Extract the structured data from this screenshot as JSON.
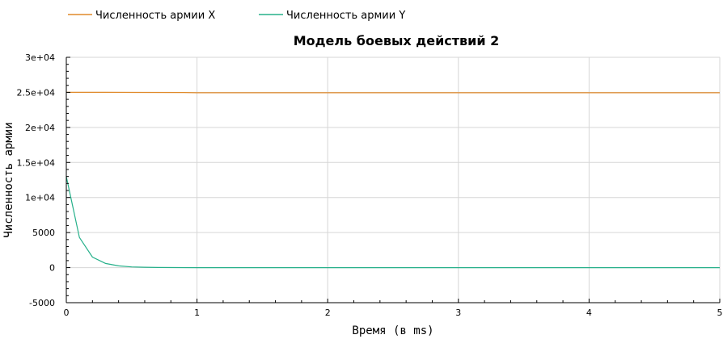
{
  "chart_data": {
    "type": "line",
    "title": "Модель боевых действий 2",
    "xlabel": "Время (в ms)",
    "ylabel": "Численность армии",
    "xlim": [
      0,
      5
    ],
    "ylim": [
      -5000,
      30000
    ],
    "xticks": [
      0,
      1,
      2,
      3,
      4,
      5
    ],
    "yticks": [
      -5000,
      0,
      5000,
      10000,
      15000,
      20000,
      25000,
      30000
    ],
    "ytick_labels": [
      "-5000",
      "0",
      "5000",
      "1e+04",
      "1.5e+04",
      "2e+04",
      "2.5e+04",
      "3e+04"
    ],
    "grid": true,
    "legend_position": "top-left",
    "series": [
      {
        "name": "Численность армии X",
        "color": "#e08a2a",
        "x": [
          0,
          0.1,
          0.2,
          0.3,
          0.5,
          0.9,
          1,
          2,
          3,
          4,
          5
        ],
        "y": [
          25000,
          25000,
          25000,
          25000,
          24990,
          24980,
          24950,
          24950,
          24950,
          24950,
          24950
        ]
      },
      {
        "name": "Численность армии Y",
        "color": "#26b08a",
        "x": [
          0,
          0.1,
          0.2,
          0.3,
          0.4,
          0.5,
          0.6,
          0.7,
          1,
          2,
          3,
          4,
          5
        ],
        "y": [
          13000,
          4300,
          1500,
          600,
          250,
          100,
          50,
          20,
          0,
          0,
          0,
          0,
          0
        ]
      }
    ]
  }
}
